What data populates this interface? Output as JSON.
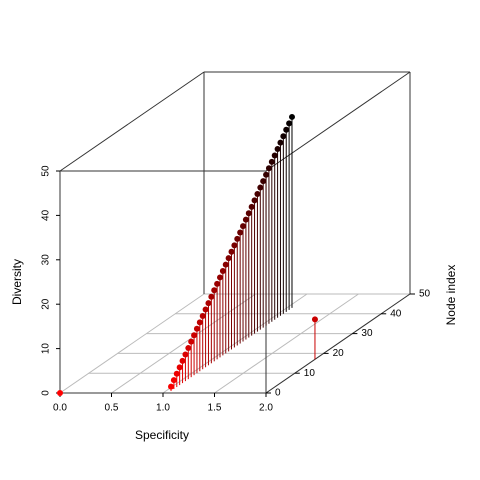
{
  "chart_data": {
    "type": "scatter3d",
    "xlabel": "Specificity",
    "ylabel": "Node index",
    "zlabel": "Diversity",
    "xlim": [
      0,
      2
    ],
    "xticks": [
      {
        "value": 0,
        "label": "0.0"
      },
      0.5,
      {
        "value": 1,
        "label": "1.0"
      },
      1.5,
      {
        "value": 2,
        "label": "2.0"
      }
    ],
    "ylim": [
      0,
      50
    ],
    "yticks": [
      0,
      10,
      20,
      30,
      40,
      50
    ],
    "zlim": [
      0,
      50
    ],
    "zticks": [
      0,
      10,
      20,
      30,
      40,
      50
    ],
    "color_scale": [
      "#ff0000",
      "#000000"
    ],
    "grid": true,
    "type_h": true,
    "x": [
      0,
      1.05,
      1.05,
      1.05,
      1.05,
      1.05,
      1.05,
      1.05,
      1.05,
      1.05,
      1.05,
      1.05,
      1.05,
      1.05,
      1.05,
      1.05,
      1.05,
      1.05,
      1.05,
      1.05,
      1.05,
      1.05,
      1.05,
      1.05,
      1.05,
      1.05,
      1.05,
      1.05,
      1.05,
      1.05,
      1.05,
      1.05,
      1.05,
      1.05,
      1.05,
      1.05,
      1.05,
      1.05,
      1.05,
      1.05,
      1.05,
      1.05,
      1.05,
      1.05,
      2
    ],
    "y": [
      0,
      1,
      2,
      3,
      4,
      5,
      6,
      7,
      8,
      9,
      10,
      11,
      12,
      13,
      14,
      15,
      16,
      17,
      18,
      19,
      20,
      21,
      22,
      23,
      24,
      25,
      26,
      27,
      28,
      29,
      30,
      31,
      32,
      33,
      34,
      35,
      36,
      37,
      38,
      39,
      40,
      41,
      42,
      43,
      17
    ],
    "z": [
      0,
      1,
      2,
      3,
      4,
      5,
      6,
      7,
      8,
      9,
      10,
      11,
      12,
      13,
      14,
      15,
      16,
      17,
      18,
      19,
      20,
      21,
      22,
      23,
      24,
      25,
      26,
      27,
      28,
      29,
      30,
      31,
      32,
      33,
      34,
      35,
      36,
      37,
      38,
      39,
      40,
      41,
      42,
      43,
      9
    ]
  }
}
